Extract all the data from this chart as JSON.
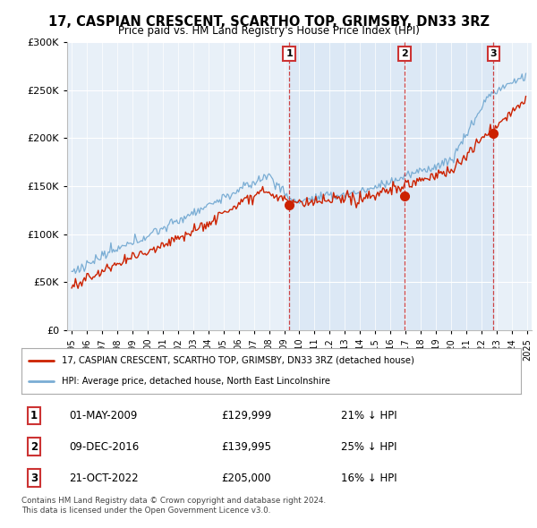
{
  "title": "17, CASPIAN CRESCENT, SCARTHO TOP, GRIMSBY, DN33 3RZ",
  "subtitle": "Price paid vs. HM Land Registry's House Price Index (HPI)",
  "hpi_color": "#7aadd4",
  "price_color": "#cc2200",
  "shade_color": "#dce8f5",
  "background_color": "#ffffff",
  "plot_bg": "#e8f0f8",
  "grid_color": "#ffffff",
  "sales": [
    {
      "date_str": "01-MAY-2009",
      "year": 2009.33,
      "price": 129999,
      "label": "1",
      "pct": "21% ↓ HPI"
    },
    {
      "date_str": "09-DEC-2016",
      "year": 2016.92,
      "price": 139995,
      "label": "2",
      "pct": "25% ↓ HPI"
    },
    {
      "date_str": "21-OCT-2022",
      "year": 2022.79,
      "price": 205000,
      "label": "3",
      "pct": "16% ↓ HPI"
    }
  ],
  "legend_house_label": "17, CASPIAN CRESCENT, SCARTHO TOP, GRIMSBY, DN33 3RZ (detached house)",
  "legend_hpi_label": "HPI: Average price, detached house, North East Lincolnshire",
  "footer1": "Contains HM Land Registry data © Crown copyright and database right 2024.",
  "footer2": "This data is licensed under the Open Government Licence v3.0.",
  "ylim": [
    0,
    300000
  ],
  "yticks": [
    0,
    50000,
    100000,
    150000,
    200000,
    250000,
    300000
  ],
  "xlim_left": 1994.7,
  "xlim_right": 2025.3
}
